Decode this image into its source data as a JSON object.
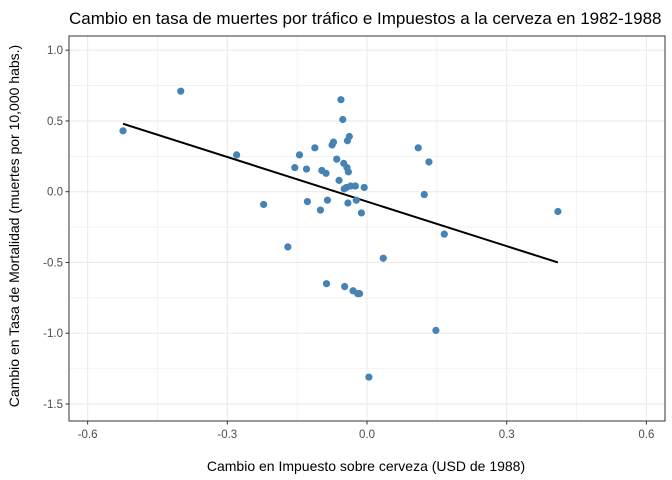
{
  "chart_data": {
    "type": "scatter",
    "title": "Cambio en tasa de muertes por tráfico e Impuestos a la cerveza en 1982-1988",
    "xlabel": "Cambio en Impuesto sobre cerveza (USD de 1988)",
    "ylabel": "Cambio en Tasa de Mortalidad (muertes por 10,000 habs.)",
    "xlim": [
      -0.64,
      0.64
    ],
    "ylim": [
      -1.62,
      1.1
    ],
    "x_ticks": [
      -0.6,
      -0.3,
      0.0,
      0.3,
      0.6
    ],
    "x_tick_labels": [
      "-0.6",
      "-0.3",
      "0.0",
      "0.3",
      "0.6"
    ],
    "y_ticks": [
      -1.5,
      -1.0,
      -0.5,
      0.0,
      0.5,
      1.0
    ],
    "y_tick_labels": [
      "-1.5",
      "-1.0",
      "-0.5",
      "0.0",
      "0.5",
      "1.0"
    ],
    "grid": true,
    "point_color": "#4682B4",
    "line_color": "#000000",
    "points": [
      {
        "x": -0.524,
        "y": 0.43
      },
      {
        "x": -0.4,
        "y": 0.71
      },
      {
        "x": -0.28,
        "y": 0.26
      },
      {
        "x": -0.222,
        "y": -0.09
      },
      {
        "x": -0.17,
        "y": -0.39
      },
      {
        "x": -0.155,
        "y": 0.17
      },
      {
        "x": -0.145,
        "y": 0.26
      },
      {
        "x": -0.13,
        "y": 0.16
      },
      {
        "x": -0.128,
        "y": -0.07
      },
      {
        "x": -0.112,
        "y": 0.31
      },
      {
        "x": -0.1,
        "y": -0.13
      },
      {
        "x": -0.097,
        "y": 0.15
      },
      {
        "x": -0.088,
        "y": 0.13
      },
      {
        "x": -0.087,
        "y": -0.65
      },
      {
        "x": -0.085,
        "y": -0.06
      },
      {
        "x": -0.075,
        "y": 0.33
      },
      {
        "x": -0.072,
        "y": 0.35
      },
      {
        "x": -0.065,
        "y": 0.23
      },
      {
        "x": -0.06,
        "y": 0.08
      },
      {
        "x": -0.056,
        "y": 0.65
      },
      {
        "x": -0.052,
        "y": 0.51
      },
      {
        "x": -0.05,
        "y": 0.2
      },
      {
        "x": -0.049,
        "y": 0.02
      },
      {
        "x": -0.048,
        "y": -0.67
      },
      {
        "x": -0.044,
        "y": 0.03
      },
      {
        "x": -0.043,
        "y": 0.17
      },
      {
        "x": -0.042,
        "y": 0.36
      },
      {
        "x": -0.041,
        "y": -0.08
      },
      {
        "x": -0.04,
        "y": 0.14
      },
      {
        "x": -0.038,
        "y": 0.39
      },
      {
        "x": -0.035,
        "y": 0.04
      },
      {
        "x": -0.03,
        "y": -0.7
      },
      {
        "x": -0.025,
        "y": 0.04
      },
      {
        "x": -0.023,
        "y": -0.06
      },
      {
        "x": -0.02,
        "y": -0.72
      },
      {
        "x": -0.016,
        "y": -0.72
      },
      {
        "x": -0.012,
        "y": -0.15
      },
      {
        "x": -0.006,
        "y": 0.03
      },
      {
        "x": 0.004,
        "y": -1.31
      },
      {
        "x": 0.035,
        "y": -0.47
      },
      {
        "x": 0.11,
        "y": 0.31
      },
      {
        "x": 0.123,
        "y": -0.02
      },
      {
        "x": 0.133,
        "y": 0.21
      },
      {
        "x": 0.148,
        "y": -0.98
      },
      {
        "x": 0.166,
        "y": -0.3
      },
      {
        "x": 0.41,
        "y": -0.14
      }
    ],
    "regression_line": {
      "x": [
        -0.524,
        0.41
      ],
      "y": [
        0.48,
        -0.5
      ]
    }
  }
}
